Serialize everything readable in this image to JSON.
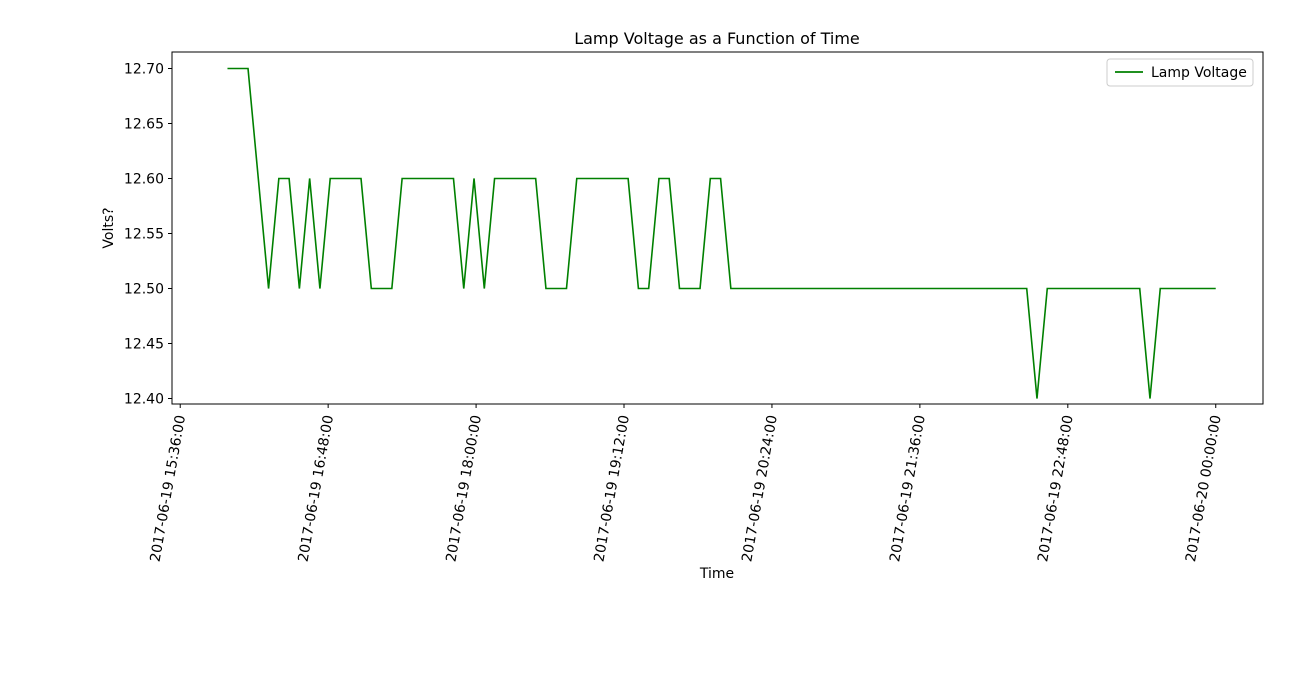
{
  "chart_data": {
    "type": "line",
    "title": "Lamp Voltage as a Function of Time",
    "xlabel": "Time",
    "ylabel": "Volts?",
    "x_axis": "datetime",
    "xlim": [
      "2017-06-19 15:32:00",
      "2017-06-20 00:23:00"
    ],
    "ylim": [
      12.395,
      12.715
    ],
    "yticks": [
      12.4,
      12.45,
      12.5,
      12.55,
      12.6,
      12.65,
      12.7
    ],
    "ytick_labels": [
      "12.40",
      "12.45",
      "12.50",
      "12.55",
      "12.60",
      "12.65",
      "12.70"
    ],
    "xticks": [
      "2017-06-19 15:36:00",
      "2017-06-19 16:48:00",
      "2017-06-19 18:00:00",
      "2017-06-19 19:12:00",
      "2017-06-19 20:24:00",
      "2017-06-19 21:36:00",
      "2017-06-19 22:48:00",
      "2017-06-20 00:00:00"
    ],
    "xtick_labels": [
      "2017-06-19 15:36:00",
      "2017-06-19 16:48:00",
      "2017-06-19 18:00:00",
      "2017-06-19 19:12:00",
      "2017-06-19 20:24:00",
      "2017-06-19 21:36:00",
      "2017-06-19 22:48:00",
      "2017-06-20 00:00:00"
    ],
    "grid": false,
    "legend_position": "top-right",
    "series": [
      {
        "name": "Lamp Voltage",
        "color": "#008000",
        "x": [
          "2017-06-19 15:59:00",
          "2017-06-19 16:09:00",
          "2017-06-19 16:19:00",
          "2017-06-19 16:24:00",
          "2017-06-19 16:29:00",
          "2017-06-19 16:34:00",
          "2017-06-19 16:39:00",
          "2017-06-19 16:44:00",
          "2017-06-19 16:49:00",
          "2017-06-19 17:04:00",
          "2017-06-19 17:09:00",
          "2017-06-19 17:19:00",
          "2017-06-19 17:24:00",
          "2017-06-19 17:49:00",
          "2017-06-19 17:54:00",
          "2017-06-19 17:59:00",
          "2017-06-19 18:04:00",
          "2017-06-19 18:09:00",
          "2017-06-19 18:29:00",
          "2017-06-19 18:34:00",
          "2017-06-19 18:44:00",
          "2017-06-19 18:49:00",
          "2017-06-19 19:14:00",
          "2017-06-19 19:19:00",
          "2017-06-19 19:24:00",
          "2017-06-19 19:29:00",
          "2017-06-19 19:34:00",
          "2017-06-19 19:39:00",
          "2017-06-19 19:49:00",
          "2017-06-19 19:54:00",
          "2017-06-19 19:59:00",
          "2017-06-19 20:04:00",
          "2017-06-19 22:28:00",
          "2017-06-19 22:33:00",
          "2017-06-19 22:38:00",
          "2017-06-19 23:23:00",
          "2017-06-19 23:28:00",
          "2017-06-19 23:33:00",
          "2017-06-20 00:00:00"
        ],
        "y": [
          12.7,
          12.7,
          12.5,
          12.6,
          12.6,
          12.5,
          12.6,
          12.5,
          12.6,
          12.6,
          12.5,
          12.5,
          12.6,
          12.6,
          12.5,
          12.6,
          12.5,
          12.6,
          12.6,
          12.5,
          12.5,
          12.6,
          12.6,
          12.5,
          12.5,
          12.6,
          12.6,
          12.5,
          12.5,
          12.6,
          12.6,
          12.5,
          12.5,
          12.4,
          12.5,
          12.5,
          12.4,
          12.5,
          12.5
        ]
      }
    ]
  }
}
